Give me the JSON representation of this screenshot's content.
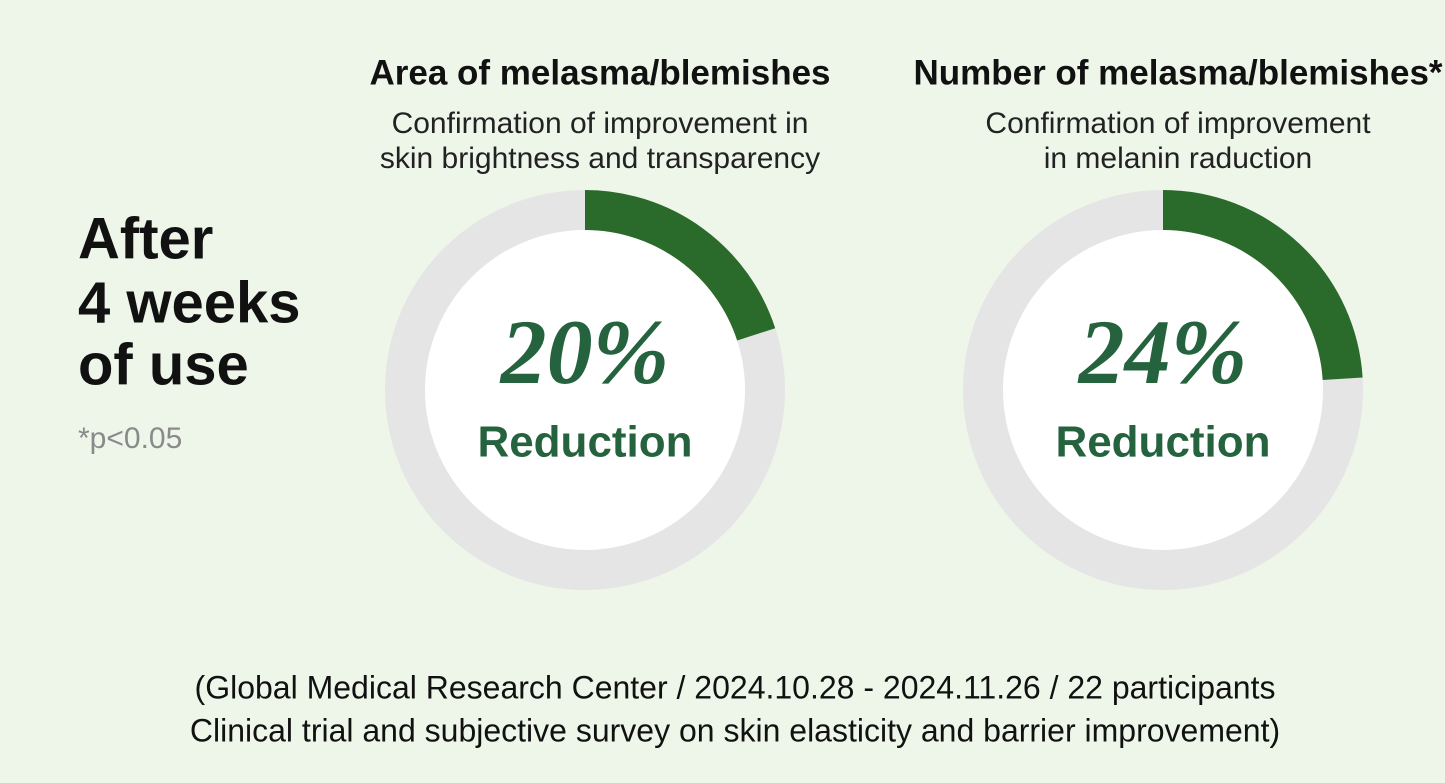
{
  "heading": [
    "After",
    "4 weeks",
    "of use"
  ],
  "note": "*p<0.05",
  "footnote": [
    "(Global Medical Research Center / 2024.10.28 - 2024.11.26 / 22 participants",
    "Clinical trial and subjective survey on skin elasticity and barrier improvement)"
  ],
  "chart_data": [
    {
      "type": "donut",
      "title": "Area of melasma/blemishes",
      "subtitle": [
        "Confirmation of improvement in",
        "skin brightness and transparency"
      ],
      "values": [
        20
      ],
      "value_labels": [
        "20%"
      ],
      "caption": "Reduction",
      "ylim": [
        0,
        100
      ],
      "color": "#2a6a2a",
      "track_color": "#e5e5e5"
    },
    {
      "type": "donut",
      "title": "Number of melasma/blemishes*",
      "subtitle": [
        "Confirmation of improvement",
        "in melanin raduction"
      ],
      "values": [
        24
      ],
      "value_labels": [
        "24%"
      ],
      "caption": "Reduction",
      "ylim": [
        0,
        100
      ],
      "color": "#2a6a2a",
      "track_color": "#e5e5e5"
    }
  ]
}
